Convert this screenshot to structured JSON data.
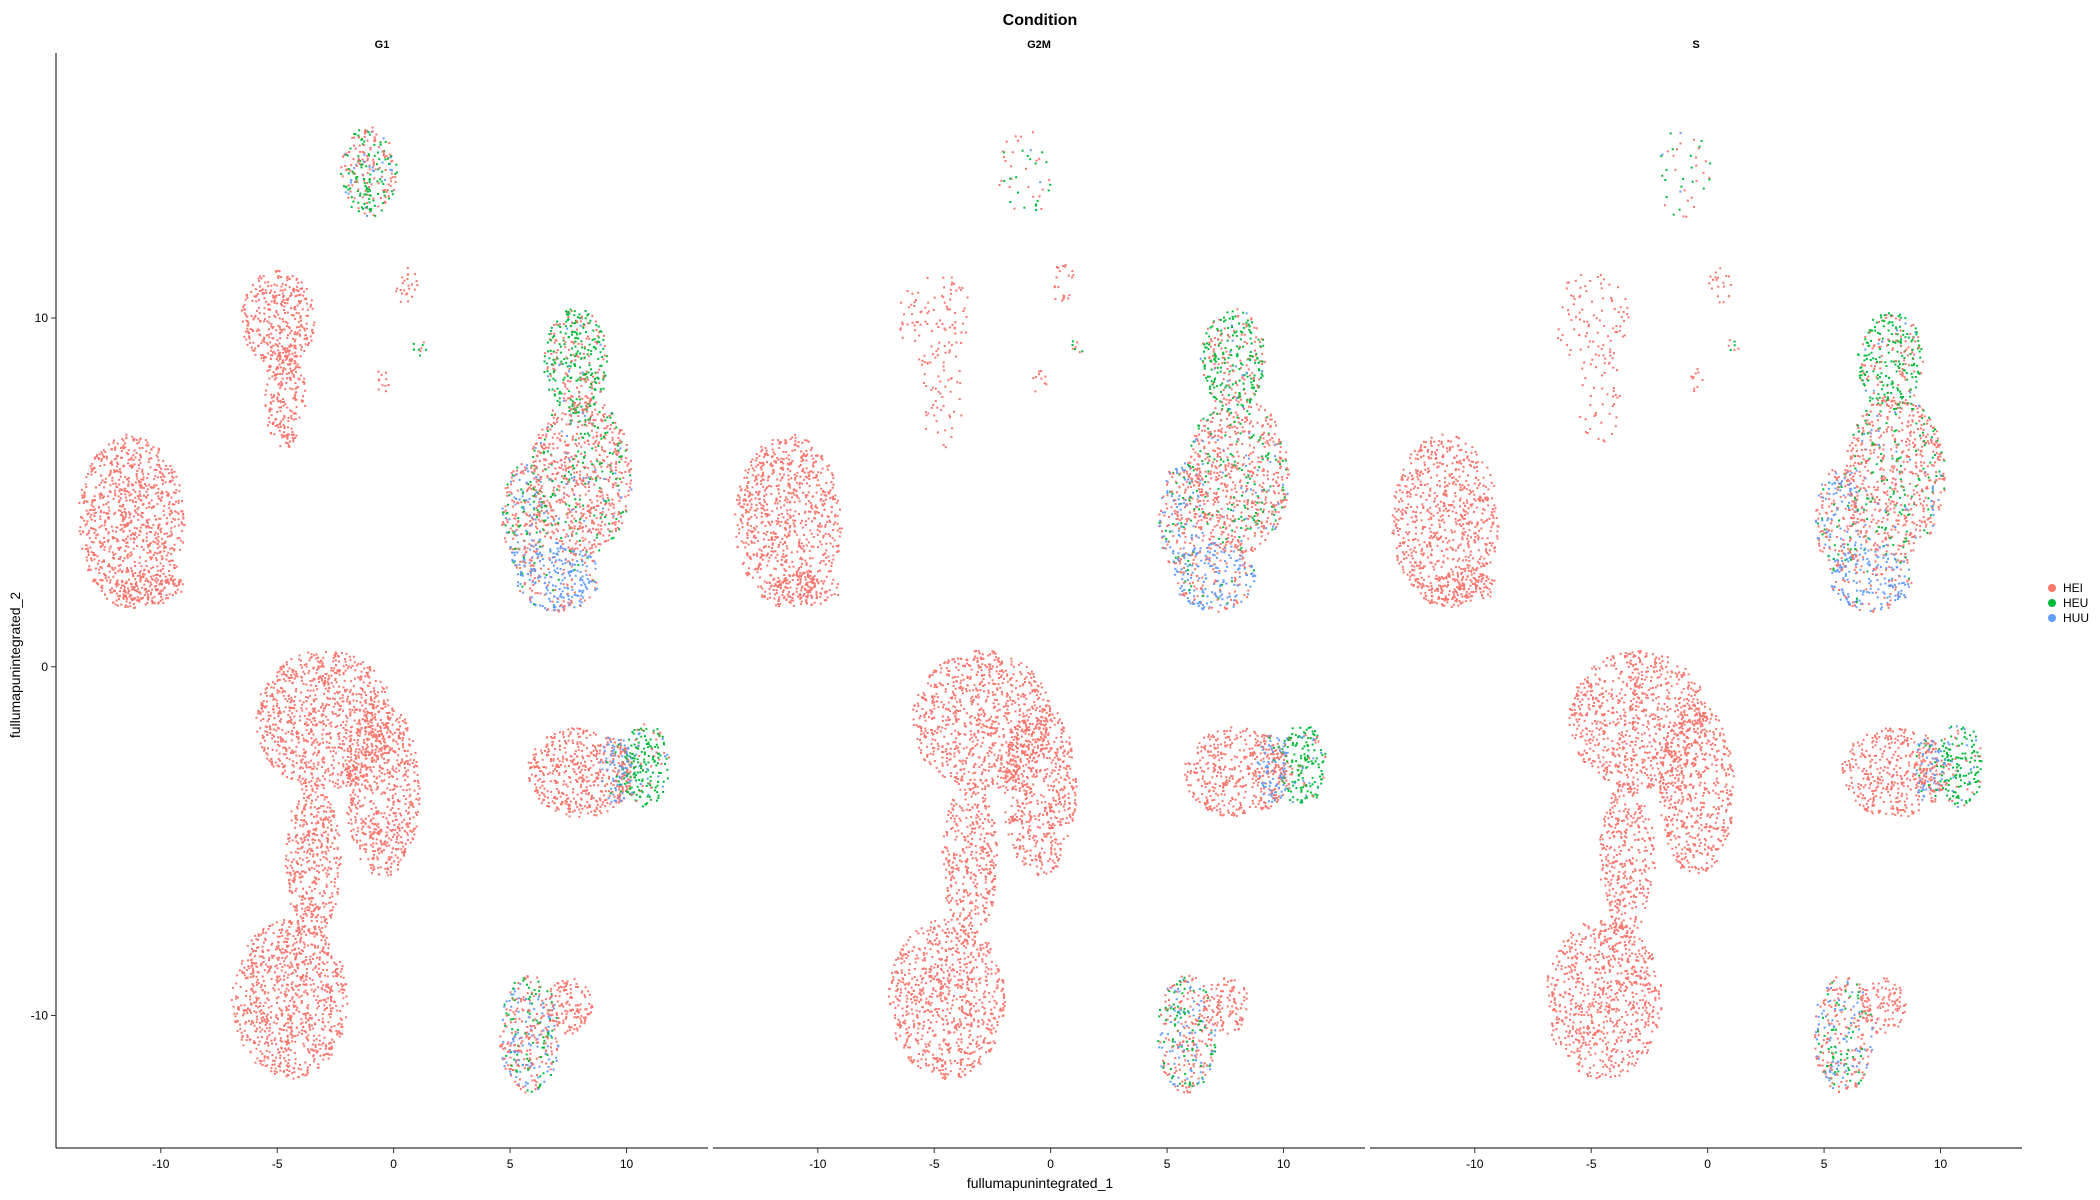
{
  "chart_data": {
    "type": "scatter",
    "title": "Condition",
    "xlabel": "fullumapunintegrated_1",
    "ylabel": "fullumapunintegrated_2",
    "xlim": [
      -14.5,
      13.5
    ],
    "ylim": [
      -13.8,
      17.6
    ],
    "x_ticks": [
      -10,
      -5,
      0,
      5,
      10
    ],
    "y_ticks": [
      -10,
      0,
      10
    ],
    "grid": false,
    "legend_position": "right",
    "series": [
      {
        "name": "HEI",
        "color": "#F8766D"
      },
      {
        "name": "HEU",
        "color": "#00BA38"
      },
      {
        "name": "HUU",
        "color": "#619CFF"
      }
    ],
    "panels": [
      {
        "label": "G1",
        "density": 1.0
      },
      {
        "label": "G2M",
        "density": 0.9
      },
      {
        "label": "S",
        "density": 0.85
      }
    ],
    "clusters": [
      {
        "cx": -11.3,
        "cy": 4.2,
        "rx": 2.3,
        "ry": 2.5,
        "mix": [
          1,
          0,
          0
        ],
        "dense": [
          1,
          1,
          1
        ]
      },
      {
        "cx": -10.5,
        "cy": 2.3,
        "rx": 1.5,
        "ry": 0.5,
        "mix": [
          1,
          0,
          0
        ],
        "dense": [
          1,
          1,
          1
        ]
      },
      {
        "cx": -5.0,
        "cy": 10.0,
        "rx": 1.6,
        "ry": 1.4,
        "mix": [
          1,
          0,
          0
        ],
        "dense": [
          1,
          0.3,
          0.3
        ]
      },
      {
        "cx": -4.7,
        "cy": 7.8,
        "rx": 0.9,
        "ry": 1.5,
        "mix": [
          1,
          0,
          0
        ],
        "dense": [
          1,
          0.25,
          0.25
        ]
      },
      {
        "cx": -1.1,
        "cy": 14.2,
        "rx": 1.2,
        "ry": 1.3,
        "mix": [
          0.5,
          0.4,
          0.1
        ],
        "dense": [
          1,
          0.2,
          0.2
        ]
      },
      {
        "cx": 0.5,
        "cy": 11.0,
        "rx": 0.5,
        "ry": 0.6,
        "mix": [
          1,
          0,
          0
        ],
        "dense": [
          0.5,
          0.5,
          0.5
        ]
      },
      {
        "cx": 1.1,
        "cy": 9.2,
        "rx": 0.3,
        "ry": 0.3,
        "mix": [
          0.6,
          0.4,
          0
        ],
        "dense": [
          0.6,
          0.6,
          0.6
        ]
      },
      {
        "cx": -0.5,
        "cy": 8.2,
        "rx": 0.3,
        "ry": 0.4,
        "mix": [
          1,
          0,
          0
        ],
        "dense": [
          0.6,
          0.6,
          0.6
        ]
      },
      {
        "cx": 5.6,
        "cy": 4.3,
        "rx": 1.0,
        "ry": 1.6,
        "mix": [
          0.5,
          0.15,
          0.35
        ],
        "dense": [
          1,
          1,
          1
        ]
      },
      {
        "cx": 7.8,
        "cy": 8.8,
        "rx": 1.4,
        "ry": 1.5,
        "mix": [
          0.35,
          0.6,
          0.05
        ],
        "dense": [
          1,
          1,
          1
        ]
      },
      {
        "cx": 8.0,
        "cy": 5.5,
        "rx": 2.2,
        "ry": 2.3,
        "mix": [
          0.75,
          0.2,
          0.05
        ],
        "dense": [
          1,
          1,
          1
        ]
      },
      {
        "cx": 7.0,
        "cy": 2.6,
        "rx": 1.8,
        "ry": 1.0,
        "mix": [
          0.35,
          0.05,
          0.6
        ],
        "dense": [
          1,
          1,
          1
        ]
      },
      {
        "cx": -3.0,
        "cy": -1.5,
        "rx": 3.0,
        "ry": 2.0,
        "mix": [
          1,
          0,
          0
        ],
        "dense": [
          1,
          1,
          1
        ]
      },
      {
        "cx": -0.5,
        "cy": -3.5,
        "rx": 1.6,
        "ry": 2.5,
        "mix": [
          1,
          0,
          0
        ],
        "dense": [
          1,
          1,
          1
        ]
      },
      {
        "cx": -3.5,
        "cy": -5.5,
        "rx": 1.2,
        "ry": 2.2,
        "mix": [
          1,
          0,
          0
        ],
        "dense": [
          1,
          1,
          1
        ]
      },
      {
        "cx": -4.5,
        "cy": -9.5,
        "rx": 2.5,
        "ry": 2.3,
        "mix": [
          1,
          0,
          0
        ],
        "dense": [
          1,
          1,
          1
        ]
      },
      {
        "cx": 8.0,
        "cy": -3.0,
        "rx": 2.3,
        "ry": 1.3,
        "mix": [
          1,
          0,
          0
        ],
        "dense": [
          1,
          1,
          1
        ]
      },
      {
        "cx": 10.8,
        "cy": -2.8,
        "rx": 1.0,
        "ry": 1.2,
        "mix": [
          0.15,
          0.75,
          0.1
        ],
        "dense": [
          1,
          1,
          1
        ]
      },
      {
        "cx": 9.5,
        "cy": -2.9,
        "rx": 0.7,
        "ry": 1.0,
        "mix": [
          0.3,
          0.1,
          0.6
        ],
        "dense": [
          1,
          1,
          1
        ]
      },
      {
        "cx": 5.8,
        "cy": -10.5,
        "rx": 1.3,
        "ry": 1.7,
        "mix": [
          0.5,
          0.25,
          0.25
        ],
        "dense": [
          1,
          1,
          1
        ]
      },
      {
        "cx": 7.5,
        "cy": -9.7,
        "rx": 1.0,
        "ry": 0.8,
        "mix": [
          1,
          0,
          0
        ],
        "dense": [
          1,
          1,
          1
        ]
      }
    ]
  }
}
